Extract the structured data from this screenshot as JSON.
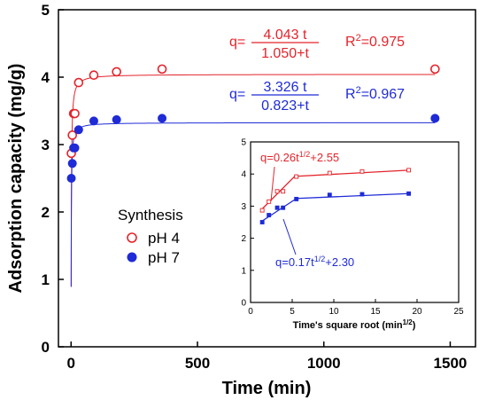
{
  "colors": {
    "ph4": "#e3242b",
    "ph7": "#1f2bd6",
    "axis": "#000000"
  },
  "chart_data": [
    {
      "type": "scatter",
      "xlabel": "Time (min)",
      "ylabel": "Adsorption capacity (mg/g)",
      "xlim": [
        -50,
        1600
      ],
      "ylim": [
        0,
        5
      ],
      "xticks": [
        "0",
        "500",
        "1000",
        "1500"
      ],
      "yticks": [
        "0",
        "1",
        "2",
        "3",
        "4",
        "5"
      ],
      "xtick_values": [
        0,
        500,
        1000,
        1500
      ],
      "ytick_values": [
        0,
        1,
        2,
        3,
        4,
        5
      ],
      "legend": {
        "title": "Synthesis",
        "items": [
          {
            "label": "pH 4",
            "marker": "open-circle"
          },
          {
            "label": "pH 7",
            "marker": "filled-circle"
          }
        ]
      },
      "series": [
        {
          "name": "pH 4",
          "x": [
            1,
            5,
            10,
            15,
            30,
            90,
            180,
            360,
            1440
          ],
          "y": [
            2.87,
            3.14,
            3.46,
            3.46,
            3.92,
            4.03,
            4.08,
            4.12,
            4.12
          ],
          "fit": {
            "qmax": 4.043,
            "k": 1.05
          }
        },
        {
          "name": "pH 7",
          "x": [
            1,
            5,
            10,
            15,
            30,
            90,
            180,
            360,
            1440
          ],
          "y": [
            2.5,
            2.72,
            2.95,
            2.95,
            3.22,
            3.35,
            3.37,
            3.39,
            3.39
          ],
          "fit": {
            "qmax": 3.326,
            "k": 0.823
          }
        }
      ],
      "annotations": [
        {
          "series": "pH 4",
          "prefix": "q=",
          "numerator": "4.043 t",
          "denominator": "1.050+t",
          "r2_label": "R",
          "r2_sup": "2",
          "r2_value": "=0.975"
        },
        {
          "series": "pH 7",
          "prefix": "q=",
          "numerator": "3.326 t",
          "denominator": "0.823+t",
          "r2_label": "R",
          "r2_sup": "2",
          "r2_value": "=0.967"
        }
      ]
    },
    {
      "type": "scatter",
      "xlabel": "Time's square root (min",
      "xlabel_sup": "1/2",
      "xlabel_end": ")",
      "xlim": [
        0,
        25
      ],
      "ylim": [
        0,
        5
      ],
      "xticks": [
        "0",
        "5",
        "10",
        "15",
        "20",
        "25"
      ],
      "yticks": [
        "0",
        "1",
        "2",
        "3",
        "4",
        "5"
      ],
      "xtick_values": [
        0,
        5,
        10,
        15,
        20,
        25
      ],
      "ytick_values": [
        0,
        1,
        2,
        3,
        4,
        5
      ],
      "series": [
        {
          "name": "pH 4",
          "x": [
            1.4,
            2.2,
            3.2,
            3.9,
            5.5,
            9.5,
            13.4,
            19.0
          ],
          "y": [
            2.87,
            3.14,
            3.46,
            3.46,
            3.92,
            4.03,
            4.08,
            4.12
          ],
          "fit_segments": [
            {
              "x": [
                1.4,
                5.5
              ],
              "slope": 0.26,
              "intercept": 2.55
            },
            {
              "x": [
                5.5,
                19.0
              ],
              "y": [
                3.93,
                4.12
              ]
            }
          ]
        },
        {
          "name": "pH 7",
          "x": [
            1.4,
            2.2,
            3.2,
            3.9,
            5.5,
            9.5,
            13.4,
            19.0
          ],
          "y": [
            2.5,
            2.72,
            2.95,
            2.95,
            3.22,
            3.35,
            3.37,
            3.39
          ],
          "fit_segments": [
            {
              "x": [
                1.4,
                5.5
              ],
              "slope": 0.17,
              "intercept": 2.3
            },
            {
              "x": [
                5.5,
                19.0
              ],
              "y": [
                3.24,
                3.39
              ]
            }
          ]
        }
      ],
      "annotations": [
        {
          "series": "pH 4",
          "text": "q=0.26t",
          "sup": "1/2",
          "text_end": "+2.55"
        },
        {
          "series": "pH 7",
          "text": "q=0.17t",
          "sup": "1/2",
          "text_end": "+2.30"
        }
      ]
    }
  ]
}
